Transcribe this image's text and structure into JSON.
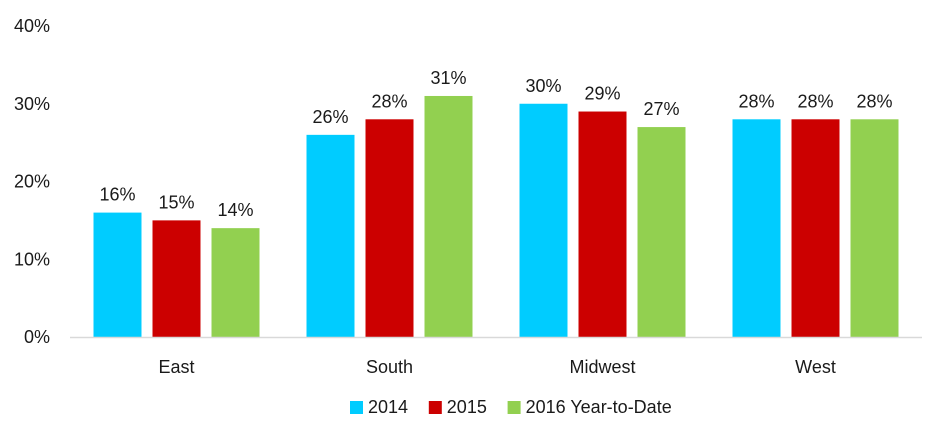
{
  "chart_data": {
    "type": "bar",
    "categories": [
      "East",
      "South",
      "Midwest",
      "West"
    ],
    "series": [
      {
        "name": "2014",
        "color": "#00ccff",
        "values": [
          16,
          26,
          30,
          28
        ]
      },
      {
        "name": "2015",
        "color": "#cc0000",
        "values": [
          15,
          28,
          29,
          28
        ]
      },
      {
        "name": "2016 Year-to-Date",
        "color": "#92d050",
        "values": [
          14,
          31,
          27,
          28
        ]
      }
    ],
    "ylim": [
      0,
      40
    ],
    "yticks": [
      0,
      10,
      20,
      30,
      40
    ],
    "ytick_labels": [
      "0%",
      "10%",
      "20%",
      "30%",
      "40%"
    ],
    "value_suffix": "%",
    "title": "",
    "xlabel": "",
    "ylabel": "",
    "grid": false,
    "legend_position": "bottom"
  }
}
